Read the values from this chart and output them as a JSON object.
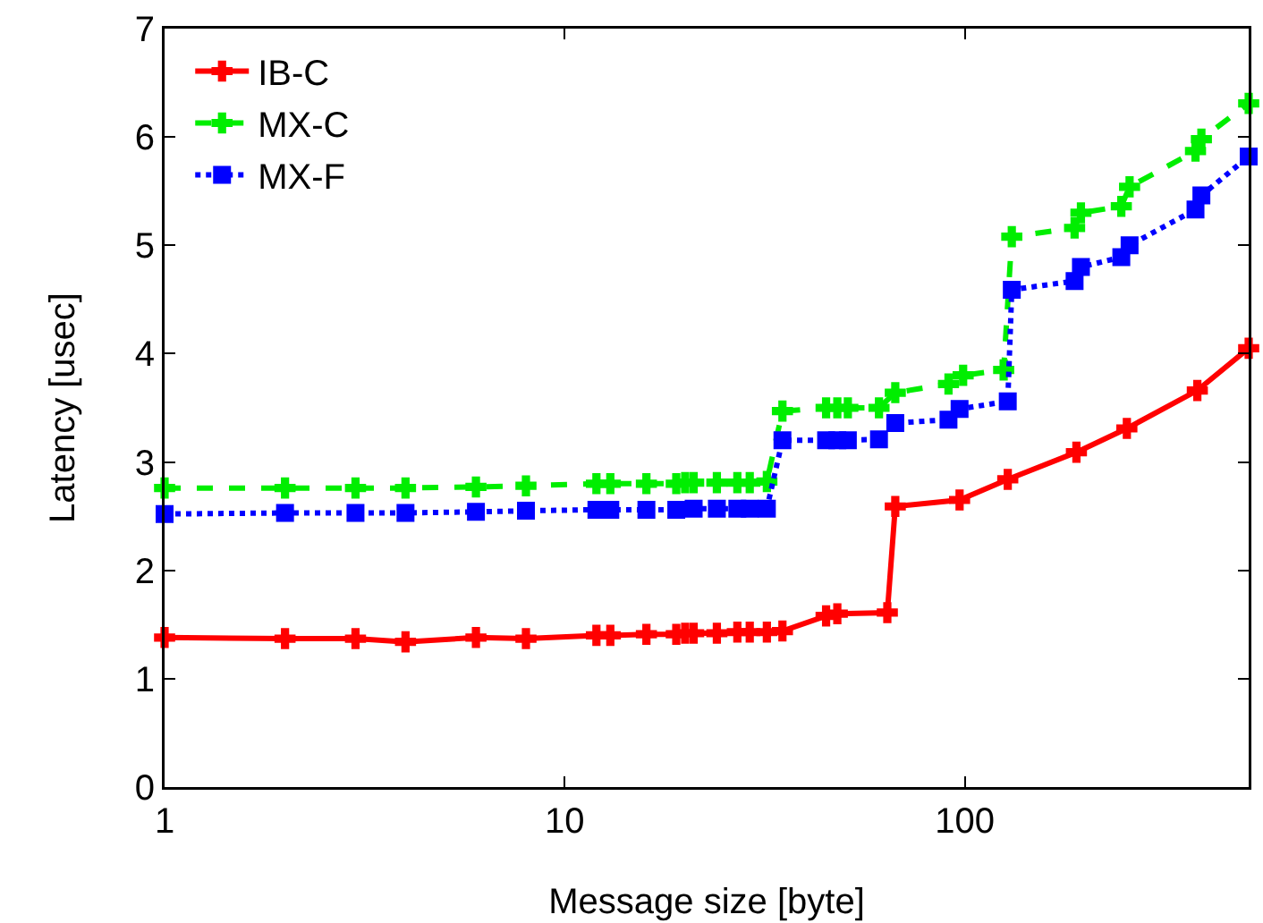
{
  "chart_data": {
    "type": "line",
    "xlabel": "Message size [byte]",
    "ylabel": "Latency [usec]",
    "log": "x",
    "xlim": [
      1,
      512
    ],
    "xticks": [
      1,
      10,
      100
    ],
    "ylim": [
      0,
      7
    ],
    "yticks": [
      0,
      1,
      2,
      3,
      4,
      5,
      6,
      7
    ],
    "grid": false,
    "legend": "top left",
    "series": [
      {
        "name": "IB-C",
        "color": "#ff0000",
        "marker": "cross",
        "line_style": "solid",
        "x": [
          1,
          2,
          3,
          4,
          6,
          8,
          12,
          13,
          16,
          19,
          20,
          21,
          24,
          27,
          29,
          32,
          35,
          45,
          48,
          64,
          67,
          97,
          128,
          190,
          254,
          381,
          512
        ],
        "values": [
          1.38,
          1.37,
          1.37,
          1.34,
          1.38,
          1.37,
          1.4,
          1.4,
          1.41,
          1.41,
          1.42,
          1.42,
          1.42,
          1.43,
          1.43,
          1.43,
          1.44,
          1.58,
          1.6,
          1.61,
          2.59,
          2.65,
          2.84,
          3.09,
          3.31,
          3.66,
          4.05
        ]
      },
      {
        "name": "MX-C",
        "color": "#00ee00",
        "marker": "cross",
        "line_style": "dashed",
        "x": [
          1,
          2,
          3,
          4,
          6,
          8,
          12,
          13,
          16,
          19,
          20,
          21,
          24,
          27,
          29,
          32,
          35,
          45,
          48,
          51,
          61,
          67,
          91,
          99,
          125,
          131,
          188,
          195,
          246,
          258,
          377,
          390,
          512
        ],
        "values": [
          2.76,
          2.76,
          2.76,
          2.76,
          2.77,
          2.78,
          2.8,
          2.8,
          2.8,
          2.8,
          2.81,
          2.81,
          2.81,
          2.81,
          2.81,
          2.82,
          3.47,
          3.5,
          3.5,
          3.5,
          3.5,
          3.64,
          3.72,
          3.8,
          3.85,
          5.08,
          5.16,
          5.3,
          5.36,
          5.54,
          5.87,
          5.98,
          6.31
        ]
      },
      {
        "name": "MX-F",
        "color": "#0000ff",
        "marker": "square",
        "line_style": "dotted",
        "x": [
          1,
          2,
          3,
          4,
          6,
          8,
          12,
          13,
          16,
          19,
          21,
          24,
          27,
          29,
          32,
          35,
          45,
          48,
          51,
          61,
          67,
          91,
          97,
          128,
          131,
          188,
          195,
          246,
          258,
          377,
          390,
          512
        ],
        "values": [
          2.52,
          2.53,
          2.53,
          2.53,
          2.54,
          2.55,
          2.56,
          2.56,
          2.56,
          2.56,
          2.57,
          2.57,
          2.57,
          2.57,
          2.57,
          3.2,
          3.2,
          3.2,
          3.2,
          3.21,
          3.36,
          3.39,
          3.49,
          3.56,
          4.59,
          4.67,
          4.8,
          4.89,
          5.0,
          5.33,
          5.46,
          5.82
        ]
      }
    ]
  }
}
